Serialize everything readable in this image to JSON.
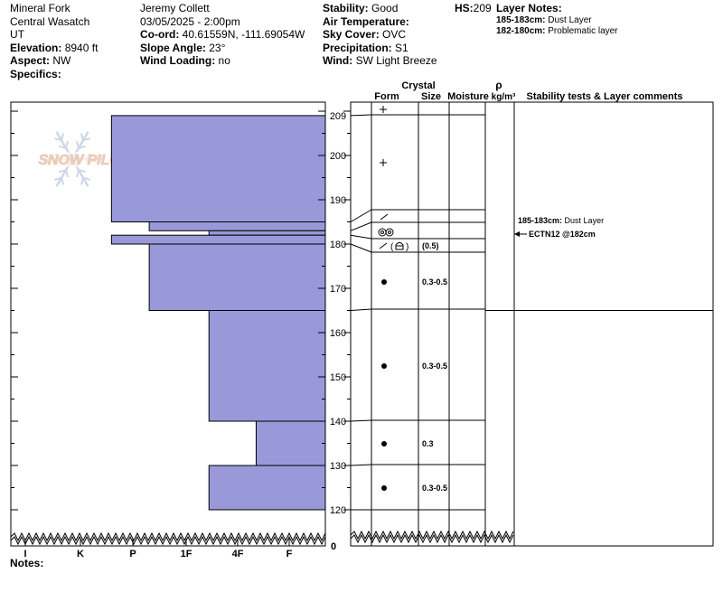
{
  "header": {
    "location_lines": [
      "Mineral Fork",
      "Central Wasatch",
      "UT"
    ],
    "elevation_label": "Elevation:",
    "elevation": "8940 ft",
    "aspect_label": "Aspect:",
    "aspect": "NW",
    "specifics_label": "Specifics:",
    "observer": "Jeremy  Collett",
    "datetime": "03/05/2025 - 2:00pm",
    "coord_label": "Co-ord:",
    "coord": "40.61559N, -111.69054W",
    "slope_label": "Slope Angle:",
    "slope": "23°",
    "wind_loading_label": "Wind Loading:",
    "wind_loading": "no",
    "stability_label": "Stability:",
    "stability": "Good",
    "air_temp_label": "Air Temperature:",
    "sky_label": "Sky Cover:",
    "sky": "OVC",
    "precip_label": "Precipitation:",
    "precip": "S1",
    "wind_label": "Wind:",
    "wind": "SW Light Breeze",
    "hs_label": "HS:",
    "hs": "209",
    "layer_notes_label": "Layer Notes:",
    "layer_notes": [
      {
        "range": "185-183cm:",
        "text": "Dust Layer"
      },
      {
        "range": "182-180cm:",
        "text": "Problematic layer"
      }
    ]
  },
  "logo_text": "SNOW PILOT",
  "notes_label": "Notes:",
  "chart_data": {
    "type": "snow_profile",
    "y_axis": {
      "unit": "cm",
      "range": [
        0,
        215
      ],
      "ticks": [
        120,
        130,
        140,
        150,
        160,
        170,
        180,
        190,
        200,
        209
      ],
      "broken_below": 117,
      "zero_label": "0"
    },
    "hardness_scale": [
      "I",
      "K",
      "P",
      "1F",
      "4F",
      "F"
    ],
    "hardness_layers": [
      {
        "top": 209,
        "bottom": 185,
        "hardness": 0.68
      },
      {
        "top": 185,
        "bottom": 183,
        "hardness": 0.56
      },
      {
        "top": 183,
        "bottom": 182,
        "hardness": 0.37
      },
      {
        "top": 182,
        "bottom": 180,
        "hardness": 0.68
      },
      {
        "top": 180,
        "bottom": 165,
        "hardness": 0.56
      },
      {
        "top": 165,
        "bottom": 140,
        "hardness": 0.37
      },
      {
        "top": 140,
        "bottom": 130,
        "hardness": 0.22
      },
      {
        "top": 130,
        "bottom": 120,
        "hardness": 0.37
      }
    ],
    "columns": {
      "form": "Form",
      "crystal": "Crystal",
      "size": "Size",
      "moisture": "Moisture",
      "density_symbol": "ρ",
      "density_unit": "kg/m³",
      "comments": "Stability tests & Layer comments"
    },
    "layer_boundaries": [
      209,
      185,
      183,
      182,
      180,
      165,
      140,
      130,
      120
    ],
    "layers": [
      {
        "top": 209,
        "bottom": 185,
        "forms": [
          "plus",
          "plus"
        ],
        "size": ""
      },
      {
        "top": 185,
        "bottom": 183,
        "forms": [
          "slash"
        ],
        "size": ""
      },
      {
        "top": 183,
        "bottom": 182,
        "forms": [
          "surface-hoar"
        ],
        "size": ""
      },
      {
        "top": 182,
        "bottom": 180,
        "forms": [
          "slash",
          "mixed-form"
        ],
        "size": "(0.5)"
      },
      {
        "top": 180,
        "bottom": 165,
        "forms": [
          "dot"
        ],
        "size": "0.3-0.5"
      },
      {
        "top": 165,
        "bottom": 140,
        "forms": [
          "dot"
        ],
        "size": "0.3-0.5"
      },
      {
        "top": 140,
        "bottom": 130,
        "forms": [
          "dot"
        ],
        "size": "0.3"
      },
      {
        "top": 130,
        "bottom": 120,
        "forms": [
          "dot"
        ],
        "size": "0.3-0.5"
      }
    ],
    "comments": [
      {
        "range": "185-183cm:",
        "text": "Dust Layer"
      },
      {
        "text": "ECTN12 @182cm"
      }
    ],
    "colors": {
      "fill": "#9999d9",
      "stroke": "#000000",
      "logo": "#cfd7e6"
    }
  }
}
